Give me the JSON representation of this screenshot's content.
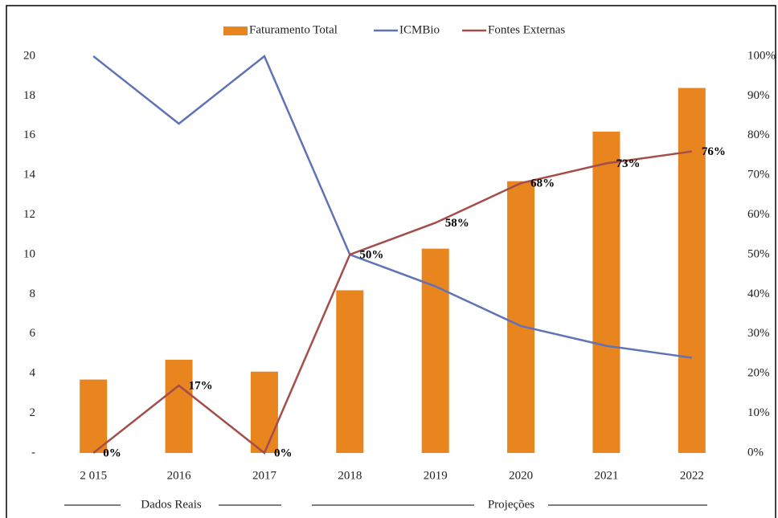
{
  "chart_data": {
    "type": "bar",
    "categories": [
      "2 015",
      "2016",
      "2017",
      "2018",
      "2019",
      "2020",
      "2021",
      "2022"
    ],
    "series": [
      {
        "name": "Faturamento Total",
        "type": "bar",
        "color": "#e8851f",
        "values": [
          3.7,
          4.7,
          4.1,
          8.2,
          10.3,
          13.7,
          16.2,
          18.4
        ]
      },
      {
        "name": "ICMBio",
        "type": "line",
        "axis": "y2",
        "color": "#5f73b6",
        "values": [
          100,
          83,
          100,
          50,
          42,
          32,
          27,
          24
        ]
      },
      {
        "name": "Fontes Externas",
        "type": "line",
        "axis": "y2",
        "color": "#a34e4a",
        "values": [
          0,
          17,
          0,
          50,
          58,
          68,
          73,
          76
        ],
        "value_labels": [
          "0%",
          "17%",
          "0%",
          "50%",
          "58%",
          "68%",
          "73%",
          "76%"
        ]
      }
    ],
    "ylim": [
      0,
      20
    ],
    "yticks": [
      {
        "value": 0,
        "label": "-"
      },
      2,
      4,
      6,
      8,
      10,
      12,
      14,
      16,
      18,
      20
    ],
    "y2lim": [
      0,
      100
    ],
    "y2ticks": [
      {
        "value": 0,
        "label": "0%"
      },
      {
        "value": 10,
        "label": "10%"
      },
      {
        "value": 20,
        "label": "20%"
      },
      {
        "value": 30,
        "label": "30%"
      },
      {
        "value": 40,
        "label": "40%"
      },
      {
        "value": 50,
        "label": "50%"
      },
      {
        "value": 60,
        "label": "60%"
      },
      {
        "value": 70,
        "label": "70%"
      },
      {
        "value": 80,
        "label": "80%"
      },
      {
        "value": 90,
        "label": "90%"
      },
      {
        "value": 100,
        "label": "100%"
      }
    ],
    "legend": "top",
    "group_labels": [
      "Dados Reais",
      "Projeções"
    ]
  }
}
